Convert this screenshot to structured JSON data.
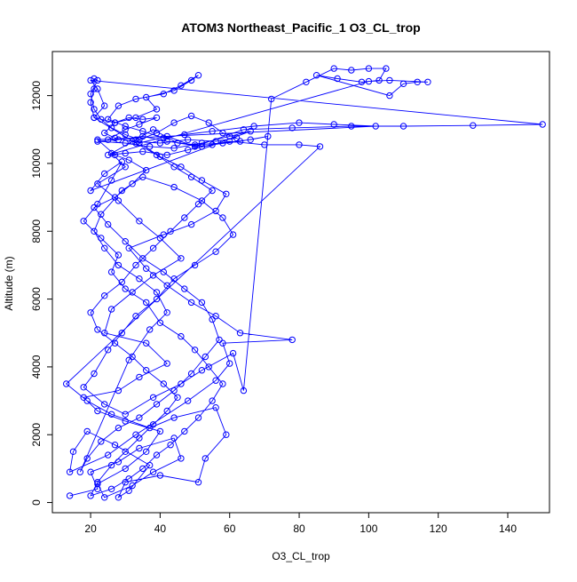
{
  "chart_data": {
    "type": "scatter",
    "title": "ATOM3 Northeast_Pacific_1 O3_CL_trop",
    "xlabel": "O3_CL_trop",
    "ylabel": "Altitude (m)",
    "xlim": [
      9,
      152
    ],
    "ylim": [
      -300,
      13300
    ],
    "x_ticks": [
      20,
      40,
      60,
      80,
      100,
      120,
      140
    ],
    "y_ticks": [
      0,
      2000,
      4000,
      6000,
      8000,
      10000,
      12000
    ],
    "grid": false,
    "legend": "none",
    "series": [
      {
        "style": "line+open-circle",
        "color": "#0000ff",
        "points": [
          [
            14,
            200
          ],
          [
            22,
            400
          ],
          [
            20,
            900
          ],
          [
            28,
            1200
          ],
          [
            34,
            1600
          ],
          [
            44,
            1900
          ],
          [
            46,
            1300
          ],
          [
            38,
            900
          ],
          [
            32,
            500
          ],
          [
            24,
            150
          ],
          [
            22,
            550
          ],
          [
            30,
            1000
          ],
          [
            36,
            1500
          ],
          [
            40,
            2100
          ],
          [
            30,
            2400
          ],
          [
            22,
            2700
          ],
          [
            18,
            3100
          ],
          [
            28,
            3300
          ],
          [
            34,
            3700
          ],
          [
            42,
            4100
          ],
          [
            36,
            4700
          ],
          [
            24,
            5000
          ],
          [
            26,
            5700
          ],
          [
            32,
            6200
          ],
          [
            38,
            6700
          ],
          [
            46,
            7200
          ],
          [
            40,
            7800
          ],
          [
            34,
            8300
          ],
          [
            28,
            8900
          ],
          [
            22,
            9400
          ],
          [
            30,
            9900
          ],
          [
            26,
            10300
          ],
          [
            33,
            10700
          ],
          [
            38,
            11000
          ],
          [
            45,
            10600
          ],
          [
            52,
            10500
          ],
          [
            60,
            10650
          ],
          [
            70,
            10550
          ],
          [
            80,
            10550
          ],
          [
            86,
            10500
          ],
          [
            13,
            3500
          ],
          [
            19,
            3000
          ],
          [
            26,
            2600
          ],
          [
            37,
            2200
          ],
          [
            44,
            2500
          ],
          [
            56,
            2800
          ],
          [
            59,
            2000
          ],
          [
            53,
            1300
          ],
          [
            51,
            600
          ],
          [
            40,
            800
          ],
          [
            30,
            600
          ],
          [
            28,
            150
          ],
          [
            31,
            350
          ],
          [
            37,
            1100
          ],
          [
            27,
            1700
          ],
          [
            19,
            2100
          ],
          [
            15,
            1500
          ],
          [
            14,
            900
          ],
          [
            25,
            1400
          ],
          [
            33,
            2000
          ],
          [
            48,
            3000
          ],
          [
            56,
            3600
          ],
          [
            60,
            4100
          ],
          [
            58,
            4700
          ],
          [
            78,
            4800
          ],
          [
            63,
            5000
          ],
          [
            56,
            5500
          ],
          [
            49,
            5900
          ],
          [
            42,
            6400
          ],
          [
            36,
            6900
          ],
          [
            31,
            7500
          ],
          [
            41,
            7900
          ],
          [
            49,
            8200
          ],
          [
            56,
            8600
          ],
          [
            59,
            9100
          ],
          [
            52,
            9500
          ],
          [
            46,
            9900
          ],
          [
            40,
            10200
          ],
          [
            34,
            10600
          ],
          [
            42,
            10800
          ],
          [
            50,
            10500
          ],
          [
            64,
            11000
          ],
          [
            78,
            11050
          ],
          [
            95,
            11100
          ],
          [
            110,
            11100
          ],
          [
            130,
            11120
          ],
          [
            150,
            11150
          ],
          [
            20,
            12450
          ],
          [
            22,
            12200
          ],
          [
            24,
            11700
          ],
          [
            21,
            11350
          ],
          [
            27,
            11200
          ],
          [
            33,
            11350
          ],
          [
            39,
            11600
          ],
          [
            36,
            11950
          ],
          [
            44,
            12150
          ],
          [
            49,
            12450
          ],
          [
            51,
            12600
          ],
          [
            46,
            12300
          ],
          [
            41,
            12050
          ],
          [
            33,
            11900
          ],
          [
            28,
            11700
          ],
          [
            25,
            11300
          ],
          [
            30,
            11100
          ],
          [
            35,
            10950
          ],
          [
            41,
            10750
          ],
          [
            47,
            10850
          ],
          [
            55,
            10950
          ],
          [
            67,
            11100
          ],
          [
            80,
            11200
          ],
          [
            90,
            11150
          ],
          [
            102,
            11100
          ],
          [
            22,
            10700
          ],
          [
            27,
            10250
          ],
          [
            31,
            10100
          ],
          [
            36,
            9800
          ],
          [
            32,
            9400
          ],
          [
            27,
            9000
          ],
          [
            21,
            8700
          ],
          [
            25,
            8200
          ],
          [
            30,
            7700
          ],
          [
            35,
            7200
          ],
          [
            41,
            6800
          ],
          [
            47,
            6300
          ],
          [
            52,
            5900
          ],
          [
            55,
            5400
          ],
          [
            57,
            4800
          ],
          [
            53,
            4300
          ],
          [
            49,
            3800
          ],
          [
            44,
            3300
          ],
          [
            39,
            2900
          ],
          [
            34,
            2500
          ],
          [
            28,
            2200
          ],
          [
            23,
            1800
          ],
          [
            19,
            1300
          ],
          [
            17,
            900
          ],
          [
            31,
            4200
          ],
          [
            37,
            5100
          ],
          [
            42,
            5600
          ],
          [
            39,
            6200
          ],
          [
            34,
            6600
          ],
          [
            28,
            7000
          ],
          [
            24,
            7500
          ],
          [
            21,
            8000
          ],
          [
            23,
            8500
          ],
          [
            29,
            9200
          ],
          [
            35,
            9600
          ],
          [
            44,
            9300
          ],
          [
            52,
            8900
          ],
          [
            58,
            8400
          ],
          [
            61,
            7900
          ],
          [
            56,
            7400
          ],
          [
            50,
            7000
          ],
          [
            44,
            6600
          ],
          [
            39,
            6000
          ],
          [
            33,
            5500
          ],
          [
            29,
            5000
          ],
          [
            25,
            4500
          ],
          [
            21,
            3800
          ],
          [
            18,
            3400
          ],
          [
            24,
            2900
          ],
          [
            30,
            2600
          ],
          [
            38,
            3100
          ],
          [
            46,
            3500
          ],
          [
            52,
            3900
          ],
          [
            61,
            4400
          ],
          [
            64,
            3300
          ],
          [
            72,
            11900
          ],
          [
            82,
            12400
          ],
          [
            90,
            12800
          ],
          [
            95,
            12750
          ],
          [
            100,
            12800
          ],
          [
            105,
            12800
          ],
          [
            103,
            12450
          ],
          [
            98,
            12400
          ],
          [
            91,
            12500
          ],
          [
            85,
            12600
          ],
          [
            106,
            12000
          ],
          [
            110,
            12350
          ],
          [
            114,
            12400
          ],
          [
            117,
            12400
          ],
          [
            106,
            12450
          ],
          [
            100,
            12420
          ],
          [
            25,
            10250
          ],
          [
            30,
            10300
          ],
          [
            35,
            10350
          ],
          [
            42,
            10250
          ],
          [
            48,
            10400
          ],
          [
            55,
            10550
          ],
          [
            63,
            10650
          ],
          [
            71,
            10800
          ],
          [
            66,
            10700
          ],
          [
            58,
            10600
          ],
          [
            50,
            10550
          ],
          [
            42,
            10650
          ],
          [
            35,
            10800
          ],
          [
            28,
            10700
          ],
          [
            22,
            10650
          ],
          [
            30,
            10600
          ],
          [
            37,
            10500
          ],
          [
            44,
            10450
          ],
          [
            52,
            10600
          ],
          [
            60,
            10800
          ],
          [
            66,
            10950
          ],
          [
            20,
            9200
          ],
          [
            24,
            9700
          ],
          [
            29,
            10050
          ],
          [
            26,
            9500
          ],
          [
            22,
            8800
          ],
          [
            18,
            8300
          ],
          [
            23,
            7800
          ],
          [
            28,
            7300
          ],
          [
            26,
            6800
          ],
          [
            30,
            6300
          ],
          [
            36,
            5900
          ],
          [
            40,
            5300
          ],
          [
            46,
            4900
          ],
          [
            50,
            4500
          ],
          [
            54,
            4000
          ],
          [
            58,
            3500
          ],
          [
            55,
            3000
          ],
          [
            51,
            2500
          ],
          [
            47,
            2100
          ],
          [
            43,
            1700
          ],
          [
            39,
            1400
          ],
          [
            35,
            1000
          ],
          [
            31,
            700
          ],
          [
            26,
            400
          ],
          [
            20,
            200
          ],
          [
            22,
            600
          ],
          [
            26,
            1100
          ],
          [
            30,
            1500
          ],
          [
            34,
            1900
          ],
          [
            38,
            2300
          ],
          [
            42,
            2700
          ],
          [
            45,
            3100
          ],
          [
            41,
            3500
          ],
          [
            36,
            3900
          ],
          [
            32,
            4300
          ],
          [
            27,
            4700
          ],
          [
            22,
            5100
          ],
          [
            20,
            5600
          ],
          [
            24,
            6100
          ],
          [
            29,
            6500
          ],
          [
            33,
            7000
          ],
          [
            38,
            7500
          ],
          [
            43,
            8000
          ],
          [
            47,
            8400
          ],
          [
            51,
            8800
          ],
          [
            55,
            9200
          ],
          [
            49,
            9600
          ],
          [
            44,
            9900
          ],
          [
            39,
            10250
          ],
          [
            33,
            10600
          ],
          [
            21,
            11350
          ],
          [
            20,
            11800
          ],
          [
            21,
            12200
          ],
          [
            21,
            12500
          ],
          [
            22,
            12450
          ],
          [
            20,
            12050
          ],
          [
            21,
            11600
          ],
          [
            23,
            11300
          ],
          [
            26,
            11050
          ],
          [
            30,
            10850
          ],
          [
            34,
            10700
          ],
          [
            39,
            10900
          ],
          [
            44,
            11200
          ],
          [
            49,
            11400
          ],
          [
            54,
            11200
          ],
          [
            58,
            10900
          ],
          [
            62,
            10750
          ],
          [
            56,
            10650
          ],
          [
            48,
            10700
          ],
          [
            40,
            10600
          ],
          [
            32,
            10650
          ],
          [
            27,
            10750
          ],
          [
            24,
            10900
          ],
          [
            27,
            11200
          ],
          [
            31,
            11350
          ],
          [
            35,
            11300
          ],
          [
            39,
            11350
          ],
          [
            34,
            11150
          ],
          [
            30,
            11000
          ],
          [
            25,
            10700
          ]
        ]
      }
    ]
  }
}
